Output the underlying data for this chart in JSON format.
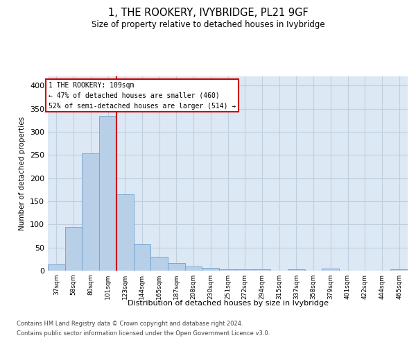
{
  "title": "1, THE ROOKERY, IVYBRIDGE, PL21 9GF",
  "subtitle": "Size of property relative to detached houses in Ivybridge",
  "xlabel": "Distribution of detached houses by size in Ivybridge",
  "ylabel": "Number of detached properties",
  "categories": [
    "37sqm",
    "58sqm",
    "80sqm",
    "101sqm",
    "123sqm",
    "144sqm",
    "165sqm",
    "187sqm",
    "208sqm",
    "230sqm",
    "251sqm",
    "272sqm",
    "294sqm",
    "315sqm",
    "337sqm",
    "358sqm",
    "379sqm",
    "401sqm",
    "422sqm",
    "444sqm",
    "465sqm"
  ],
  "values": [
    14,
    95,
    253,
    334,
    165,
    57,
    30,
    16,
    9,
    6,
    3,
    3,
    3,
    0,
    3,
    0,
    5,
    0,
    0,
    0,
    3
  ],
  "bar_color": "#b8cfe8",
  "bar_edge_color": "#6ca0d0",
  "redline_x": 3.5,
  "annotation_text_line1": "1 THE ROOKERY: 109sqm",
  "annotation_text_line2": "← 47% of detached houses are smaller (460)",
  "annotation_text_line3": "52% of semi-detached houses are larger (514) →",
  "annotation_box_color": "#ffffff",
  "annotation_box_edge_color": "#cc0000",
  "redline_color": "#cc0000",
  "grid_color": "#c0cfe0",
  "background_color": "#dde8f5",
  "footer_line1": "Contains HM Land Registry data © Crown copyright and database right 2024.",
  "footer_line2": "Contains public sector information licensed under the Open Government Licence v3.0.",
  "ylim": [
    0,
    420
  ],
  "yticks": [
    0,
    50,
    100,
    150,
    200,
    250,
    300,
    350,
    400
  ]
}
